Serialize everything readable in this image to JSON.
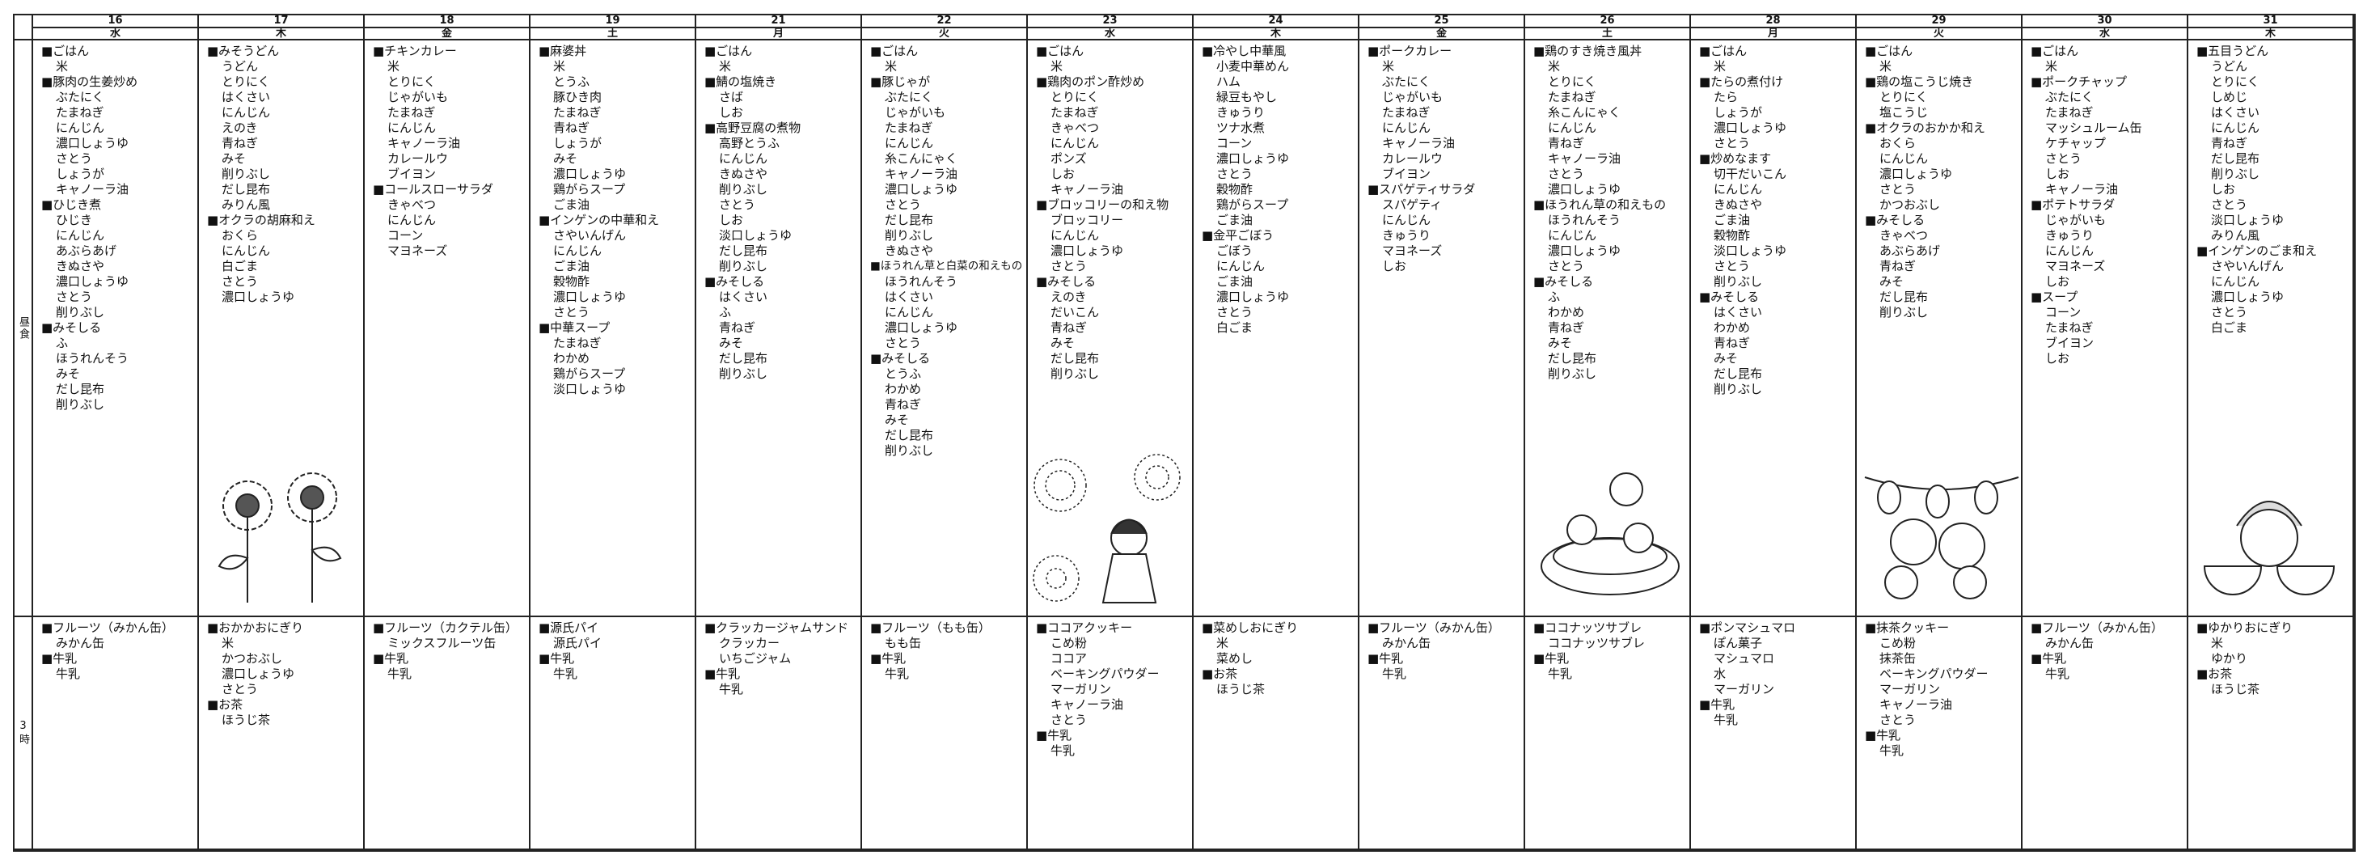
{
  "row_labels": {
    "lunch": "昼食",
    "snack": "3時"
  },
  "days": [
    {
      "date": "16",
      "weekday": "水",
      "lunch": [
        {
          "dish": "■ごはん",
          "ingredients": [
            "米"
          ]
        },
        {
          "dish": "■豚肉の生姜炒め",
          "ingredients": [
            "ぶたにく",
            "たまねぎ",
            "にんじん",
            "濃口しょうゆ",
            "さとう",
            "しょうが",
            "キャノーラ油"
          ]
        },
        {
          "dish": "■ひじき煮",
          "ingredients": [
            "ひじき",
            "にんじん",
            "あぶらあげ",
            "きぬさや",
            "濃口しょうゆ",
            "さとう",
            "削りぶし"
          ]
        },
        {
          "dish": "■みそしる",
          "ingredients": [
            "ふ",
            "ほうれんそう",
            "みそ",
            "だし昆布",
            "削りぶし"
          ]
        }
      ],
      "snack": [
        {
          "dish": "■フルーツ（みかん缶）",
          "ingredients": [
            "みかん缶"
          ]
        },
        {
          "dish": "■牛乳",
          "ingredients": [
            "牛乳"
          ]
        }
      ]
    },
    {
      "date": "17",
      "weekday": "木",
      "lunch": [
        {
          "dish": "■みそうどん",
          "ingredients": [
            "うどん",
            "とりにく",
            "はくさい",
            "にんじん",
            "えのき",
            "青ねぎ",
            "みそ",
            "削りぶし",
            "だし昆布",
            "みりん風"
          ]
        },
        {
          "dish": "■オクラの胡麻和え",
          "ingredients": [
            "おくら",
            "にんじん",
            "白ごま",
            "さとう",
            "濃口しょうゆ"
          ]
        }
      ],
      "snack": [
        {
          "dish": "■おかかおにぎり",
          "ingredients": [
            "米",
            "かつおぶし",
            "濃口しょうゆ",
            "さとう"
          ]
        },
        {
          "dish": "■お茶",
          "ingredients": [
            "ほうじ茶"
          ]
        }
      ]
    },
    {
      "date": "18",
      "weekday": "金",
      "lunch": [
        {
          "dish": "■チキンカレー",
          "ingredients": [
            "米",
            "とりにく",
            "じゃがいも",
            "たまねぎ",
            "にんじん",
            "キャノーラ油",
            "カレールウ",
            "ブイヨン"
          ]
        },
        {
          "dish": "■コールスローサラダ",
          "ingredients": [
            "きゃべつ",
            "にんじん",
            "コーン",
            "マヨネーズ"
          ]
        }
      ],
      "snack": [
        {
          "dish": "■フルーツ（カクテル缶）",
          "ingredients": [
            "ミックスフルーツ缶"
          ]
        },
        {
          "dish": "■牛乳",
          "ingredients": [
            "牛乳"
          ]
        }
      ]
    },
    {
      "date": "19",
      "weekday": "土",
      "lunch": [
        {
          "dish": "■麻婆丼",
          "ingredients": [
            "米",
            "とうふ",
            "豚ひき肉",
            "たまねぎ",
            "青ねぎ",
            "しょうが",
            "みそ",
            "濃口しょうゆ",
            "鶏がらスープ",
            "ごま油"
          ]
        },
        {
          "dish": "■インゲンの中華和え",
          "ingredients": [
            "さやいんげん",
            "にんじん",
            "ごま油",
            "穀物酢",
            "濃口しょうゆ",
            "さとう"
          ]
        },
        {
          "dish": "■中華スープ",
          "ingredients": [
            "たまねぎ",
            "わかめ",
            "鶏がらスープ",
            "淡口しょうゆ"
          ]
        }
      ],
      "snack": [
        {
          "dish": "■源氏パイ",
          "ingredients": [
            "源氏パイ"
          ]
        },
        {
          "dish": "■牛乳",
          "ingredients": [
            "牛乳"
          ]
        }
      ]
    },
    {
      "date": "21",
      "weekday": "月",
      "lunch": [
        {
          "dish": "■ごはん",
          "ingredients": [
            "米"
          ]
        },
        {
          "dish": "■鯖の塩焼き",
          "ingredients": [
            "さば",
            "しお"
          ]
        },
        {
          "dish": "■高野豆腐の煮物",
          "ingredients": [
            "高野とうふ",
            "にんじん",
            "きぬさや",
            "削りぶし",
            "さとう",
            "しお",
            "淡口しょうゆ",
            "だし昆布",
            "削りぶし"
          ]
        },
        {
          "dish": "■みそしる",
          "ingredients": [
            "はくさい",
            "ふ",
            "青ねぎ",
            "みそ",
            "だし昆布",
            "削りぶし"
          ]
        }
      ],
      "snack": [
        {
          "dish": "■クラッカージャムサンド",
          "ingredients": [
            "クラッカー",
            "いちごジャム"
          ]
        },
        {
          "dish": "■牛乳",
          "ingredients": [
            "牛乳"
          ]
        }
      ]
    },
    {
      "date": "22",
      "weekday": "火",
      "lunch": [
        {
          "dish": "■ごはん",
          "ingredients": [
            "米"
          ]
        },
        {
          "dish": "■豚じゃが",
          "ingredients": [
            "ぶたにく",
            "じゃがいも",
            "たまねぎ",
            "にんじん",
            "糸こんにゃく",
            "キャノーラ油",
            "濃口しょうゆ",
            "さとう",
            "だし昆布",
            "削りぶし",
            "きぬさや"
          ]
        },
        {
          "dish": "■ほうれん草と白菜の和えもの",
          "ingredients": [
            "ほうれんそう",
            "はくさい",
            "にんじん",
            "濃口しょうゆ",
            "さとう"
          ]
        },
        {
          "dish": "■みそしる",
          "ingredients": [
            "とうふ",
            "わかめ",
            "青ねぎ",
            "みそ",
            "だし昆布",
            "削りぶし"
          ]
        }
      ],
      "snack": [
        {
          "dish": "■フルーツ（もも缶）",
          "ingredients": [
            "もも缶"
          ]
        },
        {
          "dish": "■牛乳",
          "ingredients": [
            "牛乳"
          ]
        }
      ]
    },
    {
      "date": "23",
      "weekday": "水",
      "lunch": [
        {
          "dish": "■ごはん",
          "ingredients": [
            "米"
          ]
        },
        {
          "dish": "■鶏肉のポン酢炒め",
          "ingredients": [
            "とりにく",
            "たまねぎ",
            "きゃべつ",
            "にんじん",
            "ポンズ",
            "しお",
            "キャノーラ油"
          ]
        },
        {
          "dish": "■ブロッコリーの和え物",
          "ingredients": [
            "ブロッコリー",
            "にんじん",
            "濃口しょうゆ",
            "さとう"
          ]
        },
        {
          "dish": "■みそしる",
          "ingredients": [
            "えのき",
            "だいこん",
            "青ねぎ",
            "みそ",
            "だし昆布",
            "削りぶし"
          ]
        }
      ],
      "snack": [
        {
          "dish": "■ココアクッキー",
          "ingredients": [
            "こめ粉",
            "ココア",
            "ベーキングパウダー",
            "マーガリン",
            "キャノーラ油",
            "さとう"
          ]
        },
        {
          "dish": "■牛乳",
          "ingredients": [
            "牛乳"
          ]
        }
      ]
    },
    {
      "date": "24",
      "weekday": "木",
      "lunch": [
        {
          "dish": "■冷やし中華風",
          "ingredients": [
            "小麦中華めん",
            "ハム",
            "緑豆もやし",
            "きゅうり",
            "ツナ水煮",
            "コーン",
            "濃口しょうゆ",
            "さとう",
            "穀物酢",
            "鶏がらスープ",
            "ごま油"
          ]
        },
        {
          "dish": "■金平ごぼう",
          "ingredients": [
            "ごぼう",
            "にんじん",
            "ごま油",
            "濃口しょうゆ",
            "さとう",
            "白ごま"
          ]
        }
      ],
      "snack": [
        {
          "dish": "■菜めしおにぎり",
          "ingredients": [
            "米",
            "菜めし"
          ]
        },
        {
          "dish": "■お茶",
          "ingredients": [
            "ほうじ茶"
          ]
        }
      ]
    },
    {
      "date": "25",
      "weekday": "金",
      "lunch": [
        {
          "dish": "■ポークカレー",
          "ingredients": [
            "米",
            "ぶたにく",
            "じゃがいも",
            "たまねぎ",
            "にんじん",
            "キャノーラ油",
            "カレールウ",
            "ブイヨン"
          ]
        },
        {
          "dish": "■スパゲティサラダ",
          "ingredients": [
            "スパゲティ",
            "にんじん",
            "きゅうり",
            "マヨネーズ",
            "しお"
          ]
        }
      ],
      "snack": [
        {
          "dish": "■フルーツ（みかん缶）",
          "ingredients": [
            "みかん缶"
          ]
        },
        {
          "dish": "■牛乳",
          "ingredients": [
            "牛乳"
          ]
        }
      ]
    },
    {
      "date": "26",
      "weekday": "土",
      "lunch": [
        {
          "dish": "■鶏のすき焼き風丼",
          "ingredients": [
            "米",
            "とりにく",
            "たまねぎ",
            "糸こんにゃく",
            "にんじん",
            "青ねぎ",
            "キャノーラ油",
            "さとう",
            "濃口しょうゆ"
          ]
        },
        {
          "dish": "■ほうれん草の和えもの",
          "ingredients": [
            "ほうれんそう",
            "にんじん",
            "濃口しょうゆ",
            "さとう"
          ]
        },
        {
          "dish": "■みそしる",
          "ingredients": [
            "ふ",
            "わかめ",
            "青ねぎ",
            "みそ",
            "だし昆布",
            "削りぶし"
          ]
        }
      ],
      "snack": [
        {
          "dish": "■ココナッツサブレ",
          "ingredients": [
            "ココナッツサブレ"
          ]
        },
        {
          "dish": "■牛乳",
          "ingredients": [
            "牛乳"
          ]
        }
      ]
    },
    {
      "date": "28",
      "weekday": "月",
      "lunch": [
        {
          "dish": "■ごはん",
          "ingredients": [
            "米"
          ]
        },
        {
          "dish": "■たらの煮付け",
          "ingredients": [
            "たら",
            "しょうが",
            "濃口しょうゆ",
            "さとう"
          ]
        },
        {
          "dish": "■炒めなます",
          "ingredients": [
            "切干だいこん",
            "にんじん",
            "きぬさや",
            "ごま油",
            "穀物酢",
            "淡口しょうゆ",
            "さとう",
            "削りぶし"
          ]
        },
        {
          "dish": "■みそしる",
          "ingredients": [
            "はくさい",
            "わかめ",
            "青ねぎ",
            "みそ",
            "だし昆布",
            "削りぶし"
          ]
        }
      ],
      "snack": [
        {
          "dish": "■ポンマシュマロ",
          "ingredients": [
            "ぽん菓子",
            "マシュマロ",
            "水",
            "マーガリン"
          ]
        },
        {
          "dish": "■牛乳",
          "ingredients": [
            "牛乳"
          ]
        }
      ]
    },
    {
      "date": "29",
      "weekday": "火",
      "lunch": [
        {
          "dish": "■ごはん",
          "ingredients": [
            "米"
          ]
        },
        {
          "dish": "■鶏の塩こうじ焼き",
          "ingredients": [
            "とりにく",
            "塩こうじ"
          ]
        },
        {
          "dish": "■オクラのおかか和え",
          "ingredients": [
            "おくら",
            "にんじん",
            "濃口しょうゆ",
            "さとう",
            "かつおぶし"
          ]
        },
        {
          "dish": "■みそしる",
          "ingredients": [
            "きゃべつ",
            "あぶらあげ",
            "青ねぎ",
            "みそ",
            "だし昆布",
            "削りぶし"
          ]
        }
      ],
      "snack": [
        {
          "dish": "■抹茶クッキー",
          "ingredients": [
            "こめ粉",
            "抹茶缶",
            "ベーキングパウダー",
            "マーガリン",
            "キャノーラ油",
            "さとう"
          ]
        },
        {
          "dish": "■牛乳",
          "ingredients": [
            "牛乳"
          ]
        }
      ]
    },
    {
      "date": "30",
      "weekday": "水",
      "lunch": [
        {
          "dish": "■ごはん",
          "ingredients": [
            "米"
          ]
        },
        {
          "dish": "■ポークチャップ",
          "ingredients": [
            "ぶたにく",
            "たまねぎ",
            "マッシュルーム缶",
            "ケチャップ",
            "さとう",
            "しお",
            "キャノーラ油"
          ]
        },
        {
          "dish": "■ポテトサラダ",
          "ingredients": [
            "じゃがいも",
            "きゅうり",
            "にんじん",
            "マヨネーズ",
            "しお"
          ]
        },
        {
          "dish": "■スープ",
          "ingredients": [
            "コーン",
            "たまねぎ",
            "ブイヨン",
            "しお"
          ]
        }
      ],
      "snack": [
        {
          "dish": "■フルーツ（みかん缶）",
          "ingredients": [
            "みかん缶"
          ]
        },
        {
          "dish": "■牛乳",
          "ingredients": [
            "牛乳"
          ]
        }
      ]
    },
    {
      "date": "31",
      "weekday": "木",
      "lunch": [
        {
          "dish": "■五目うどん",
          "ingredients": [
            "うどん",
            "とりにく",
            "しめじ",
            "はくさい",
            "にんじん",
            "青ねぎ",
            "だし昆布",
            "削りぶし",
            "しお",
            "さとう",
            "淡口しょうゆ",
            "みりん風"
          ]
        },
        {
          "dish": "■インゲンのごま和え",
          "ingredients": [
            "さやいんげん",
            "にんじん",
            "濃口しょうゆ",
            "さとう",
            "白ごま"
          ]
        }
      ],
      "snack": [
        {
          "dish": "■ゆかりおにぎり",
          "ingredients": [
            "米",
            "ゆかり"
          ]
        },
        {
          "dish": "■お茶",
          "ingredients": [
            "ほうじ茶"
          ]
        }
      ]
    }
  ]
}
